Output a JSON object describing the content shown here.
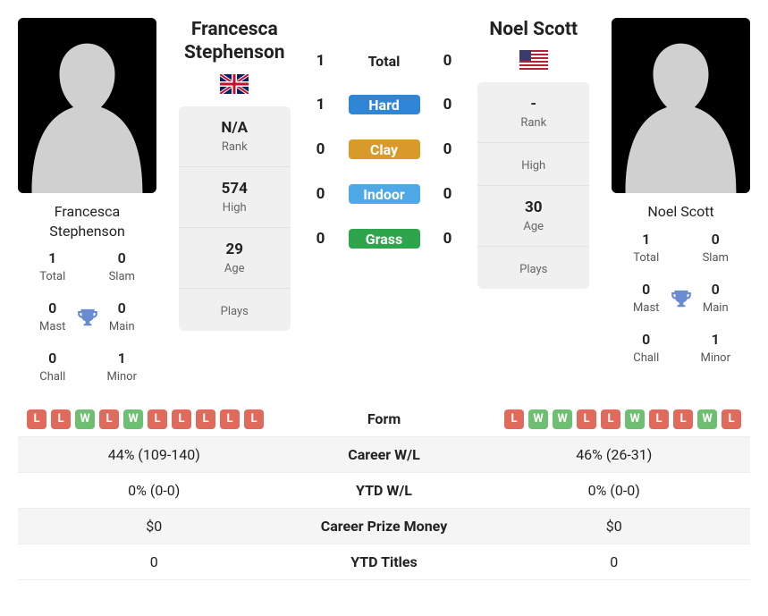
{
  "player_a": {
    "name": "Francesca Stephenson",
    "flag": "uk",
    "card_stats": {
      "total": {
        "value": "1",
        "label": "Total"
      },
      "slam": {
        "value": "0",
        "label": "Slam"
      },
      "mast": {
        "value": "0",
        "label": "Mast"
      },
      "main": {
        "value": "0",
        "label": "Main"
      },
      "chall": {
        "value": "0",
        "label": "Chall"
      },
      "minor": {
        "value": "1",
        "label": "Minor"
      }
    },
    "stack_stats": {
      "rank": {
        "value": "N/A",
        "label": "Rank"
      },
      "high": {
        "value": "574",
        "label": "High"
      },
      "age": {
        "value": "29",
        "label": "Age"
      },
      "plays": {
        "value": "",
        "label": "Plays"
      }
    },
    "form": [
      "L",
      "L",
      "W",
      "L",
      "W",
      "L",
      "L",
      "L",
      "L",
      "L"
    ]
  },
  "player_b": {
    "name": "Noel Scott",
    "flag": "us",
    "card_stats": {
      "total": {
        "value": "1",
        "label": "Total"
      },
      "slam": {
        "value": "0",
        "label": "Slam"
      },
      "mast": {
        "value": "0",
        "label": "Mast"
      },
      "main": {
        "value": "0",
        "label": "Main"
      },
      "chall": {
        "value": "0",
        "label": "Chall"
      },
      "minor": {
        "value": "1",
        "label": "Minor"
      }
    },
    "stack_stats": {
      "rank": {
        "value": "-",
        "label": "Rank"
      },
      "high": {
        "value": "",
        "label": "High"
      },
      "age": {
        "value": "30",
        "label": "Age"
      },
      "plays": {
        "value": "",
        "label": "Plays"
      }
    },
    "form": [
      "L",
      "W",
      "W",
      "L",
      "L",
      "W",
      "L",
      "L",
      "W",
      "L"
    ]
  },
  "h2h": [
    {
      "a": "1",
      "label": "Total",
      "b": "0",
      "chip": "plain"
    },
    {
      "a": "1",
      "label": "Hard",
      "b": "0",
      "chip": "hard"
    },
    {
      "a": "0",
      "label": "Clay",
      "b": "0",
      "chip": "clay"
    },
    {
      "a": "0",
      "label": "Indoor",
      "b": "0",
      "chip": "indoor"
    },
    {
      "a": "0",
      "label": "Grass",
      "b": "0",
      "chip": "grass"
    }
  ],
  "compare": {
    "rows": [
      {
        "a_form": true,
        "label": "Form",
        "b_form": true
      },
      {
        "a": "44% (109-140)",
        "label": "Career W/L",
        "b": "46% (26-31)"
      },
      {
        "a": "0% (0-0)",
        "label": "YTD W/L",
        "b": "0% (0-0)"
      },
      {
        "a": "$0",
        "label": "Career Prize Money",
        "b": "$0"
      },
      {
        "a": "0",
        "label": "YTD Titles",
        "b": "0"
      }
    ]
  },
  "colors": {
    "chip_w": "#6fbf73",
    "chip_l": "#e06a5c",
    "hard": "#2f85d6",
    "clay": "#d89a2b",
    "indoor": "#4fa9e6",
    "grass": "#2fa54b",
    "trophy": "#6a8bd0"
  }
}
